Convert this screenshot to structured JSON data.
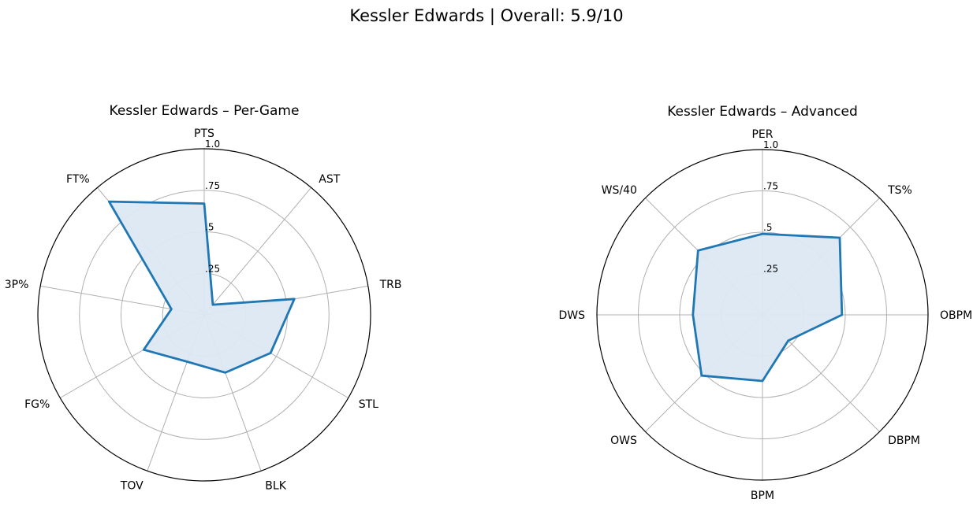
{
  "suptitle": "Kessler Edwards | Overall: 5.9/10",
  "colors": {
    "line": "#1f77b4",
    "fill": "#dce8f3",
    "grid": "#b0b0b0",
    "frame": "#000000"
  },
  "chart_data": [
    {
      "type": "radar",
      "title": "Kessler Edwards – Per-Game",
      "categories": [
        "PTS",
        "AST",
        "TRB",
        "STL",
        "BLK",
        "TOV",
        "FG%",
        "3P%",
        "FT%"
      ],
      "values": [
        0.67,
        0.08,
        0.55,
        0.46,
        0.37,
        0.3,
        0.42,
        0.2,
        0.89
      ],
      "rlim": [
        0,
        1
      ],
      "rticks": [
        0.25,
        0.5,
        0.75,
        1.0
      ],
      "rtick_labels": [
        ".25",
        ".5",
        ".75",
        "1.0"
      ],
      "grid": true
    },
    {
      "type": "radar",
      "title": "Kessler Edwards – Advanced",
      "categories": [
        "PER",
        "TS%",
        "OBPM",
        "DBPM",
        "BPM",
        "OWS",
        "DWS",
        "WS/40"
      ],
      "values": [
        0.49,
        0.66,
        0.48,
        0.22,
        0.4,
        0.52,
        0.42,
        0.55
      ],
      "rlim": [
        0,
        1
      ],
      "rticks": [
        0.25,
        0.5,
        0.75,
        1.0
      ],
      "rtick_labels": [
        ".25",
        ".5",
        ".75",
        "1.0"
      ],
      "grid": true
    }
  ]
}
